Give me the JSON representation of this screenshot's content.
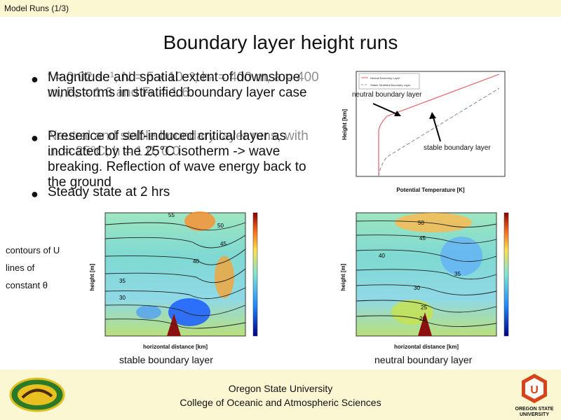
{
  "header": {
    "breadcrumb": "Model Runs (1/3)"
  },
  "slide": {
    "title": "Boundary layer height runs",
    "bullets": [
      {
        "front": "Magnitude and spatial extent of downslope windstorms in stratified boundary layer case",
        "back": "f = 0.02 s⁻¹, N = 5 x 10⁻³, hₙ = 400 m, a = 400 m, Fᵥ = 1.6 and Fₕ = 1.6"
      },
      {
        "front": "Presence of self-induced critical layer as indicated by the 25°C isotherm -> wave breaking. Reflection of wave energy back to the ground",
        "back": "Neutral and stable boundary layer runs, with uₕ = 25°C, h = 1.0, 0.0"
      },
      {
        "front": "Steady state at 2 hrs",
        "back": ""
      }
    ],
    "side_labels": [
      "contours of U",
      "lines of",
      "constant θ"
    ]
  },
  "figures": {
    "profile": {
      "xlabel": "Potential Temperature [K]",
      "ylabel": "Height [km]",
      "legend": [
        "Neutral Boundary Layer",
        "Stable Stratified Boundary Layer"
      ],
      "annotation_neutral": "neutral boundary layer",
      "annotation_stable": "stable boundary layer"
    },
    "left_section": {
      "xlabel": "horizontal distance [km]",
      "ylabel": "height [m]",
      "caption": "stable boundary layer",
      "contours": [
        "55",
        "50",
        "45",
        "40",
        "35",
        "30"
      ]
    },
    "right_section": {
      "xlabel": "horizontal distance [km]",
      "ylabel": "height [m]",
      "caption": "neutral boundary layer",
      "contours": [
        "50",
        "45",
        "40",
        "35",
        "30",
        "25",
        "20"
      ]
    }
  },
  "footer": {
    "line1": "Oregon State University",
    "line2": "College of Oceanic and Atmospheric Sciences",
    "logo_text": "OREGON STATE UNIVERSITY"
  },
  "colors": {
    "banner": "#fbf7d2",
    "accent": "#d6441a"
  }
}
